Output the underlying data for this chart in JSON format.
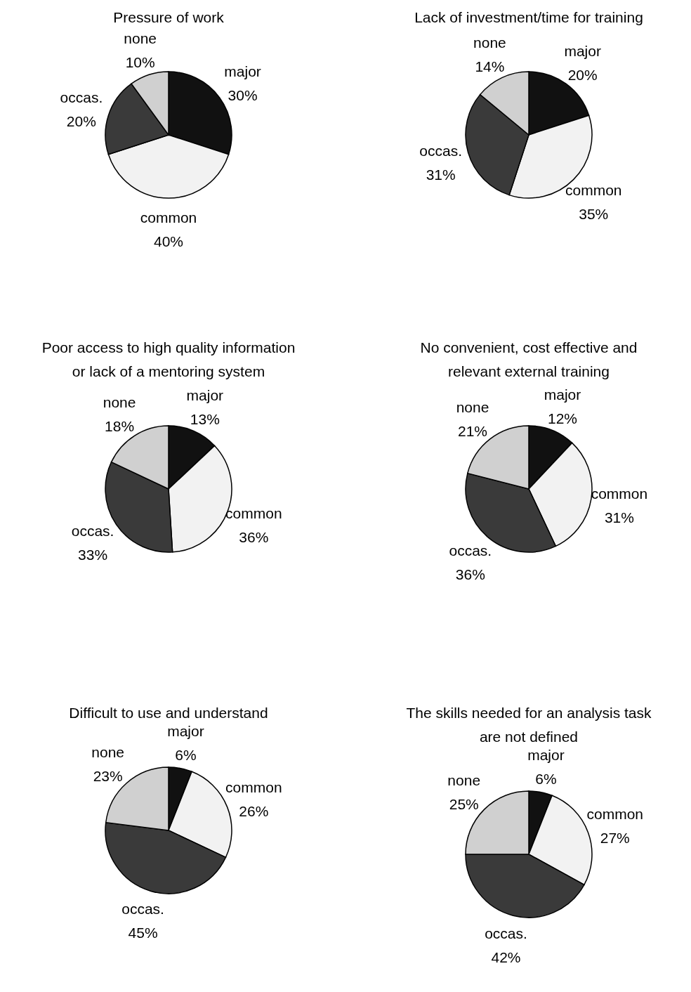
{
  "chart_data": [
    {
      "type": "pie",
      "title": "Pressure of work",
      "categories": [
        "major",
        "common",
        "occas.",
        "none"
      ],
      "values": [
        30,
        40,
        20,
        10
      ],
      "value_labels": [
        "30%",
        "40%",
        "20%",
        "10%"
      ],
      "colors": [
        "#111111",
        "#f2f2f2",
        "#3a3a3a",
        "#d0d0d0"
      ]
    },
    {
      "type": "pie",
      "title": "Lack of investment/time for training",
      "categories": [
        "major",
        "common",
        "occas.",
        "none"
      ],
      "values": [
        20,
        35,
        31,
        14
      ],
      "value_labels": [
        "20%",
        "35%",
        "31%",
        "14%"
      ],
      "colors": [
        "#111111",
        "#f2f2f2",
        "#3a3a3a",
        "#d0d0d0"
      ]
    },
    {
      "type": "pie",
      "title": "Poor access to high quality information or lack of a mentoring system",
      "categories": [
        "major",
        "common",
        "occas.",
        "none"
      ],
      "values": [
        13,
        36,
        33,
        18
      ],
      "value_labels": [
        "13%",
        "36%",
        "33%",
        "18%"
      ],
      "colors": [
        "#111111",
        "#f2f2f2",
        "#3a3a3a",
        "#d0d0d0"
      ]
    },
    {
      "type": "pie",
      "title": "No convenient, cost effective and relevant external training",
      "categories": [
        "major",
        "common",
        "occas.",
        "none"
      ],
      "values": [
        12,
        31,
        36,
        21
      ],
      "value_labels": [
        "12%",
        "31%",
        "36%",
        "21%"
      ],
      "colors": [
        "#111111",
        "#f2f2f2",
        "#3a3a3a",
        "#d0d0d0"
      ]
    },
    {
      "type": "pie",
      "title": "Difficult to use and understand",
      "categories": [
        "major",
        "common",
        "occas.",
        "none"
      ],
      "values": [
        6,
        26,
        45,
        23
      ],
      "value_labels": [
        "6%",
        "26%",
        "45%",
        "23%"
      ],
      "colors": [
        "#111111",
        "#f2f2f2",
        "#3a3a3a",
        "#d0d0d0"
      ]
    },
    {
      "type": "pie",
      "title": "The skills needed for an analysis task are not defined",
      "categories": [
        "major",
        "common",
        "occas.",
        "none"
      ],
      "values": [
        6,
        27,
        42,
        25
      ],
      "value_labels": [
        "6%",
        "27%",
        "42%",
        "25%"
      ],
      "colors": [
        "#111111",
        "#f2f2f2",
        "#3a3a3a",
        "#d0d0d0"
      ]
    }
  ]
}
